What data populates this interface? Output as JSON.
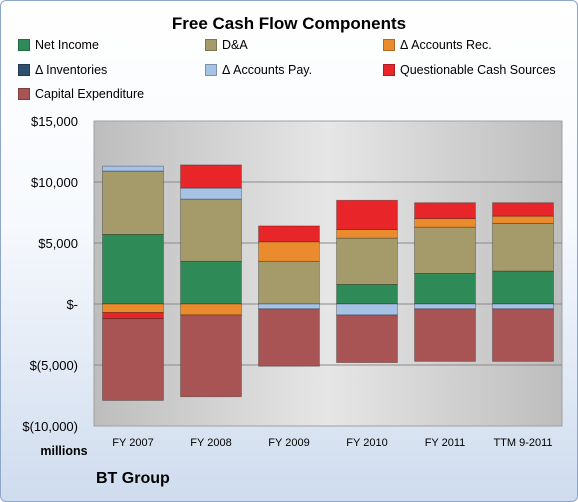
{
  "chart_data": {
    "type": "bar",
    "stacked": true,
    "title": "Free Cash Flow Components",
    "subtitle": "",
    "xlabel": "",
    "ylabel": "",
    "units_label": "millions",
    "source_label": "BT Group",
    "categories": [
      "FY 2007",
      "FY 2008",
      "FY 2009",
      "FY 2010",
      "FY 2011",
      "TTM 9-2011"
    ],
    "ylim": [
      -10000,
      15000
    ],
    "yticks": [
      {
        "value": 15000,
        "label": "$15,000"
      },
      {
        "value": 10000,
        "label": "$10,000"
      },
      {
        "value": 5000,
        "label": "$5,000"
      },
      {
        "value": 0,
        "label": "$-"
      },
      {
        "value": -5000,
        "label": "$(5,000)"
      },
      {
        "value": -10000,
        "label": "$(10,000)"
      }
    ],
    "grid": true,
    "legend_position": "top",
    "series": [
      {
        "name": "Net Income",
        "color": "#2e8b57",
        "values": [
          5700,
          3500,
          0,
          1600,
          2500,
          2700
        ]
      },
      {
        "name": "D&A",
        "color": "#a59b6a",
        "values": [
          5200,
          5100,
          3500,
          3800,
          3800,
          3900
        ]
      },
      {
        "name": "Δ Accounts Rec.",
        "color": "#ea8c2e",
        "values": [
          -700,
          -900,
          1600,
          700,
          700,
          600
        ]
      },
      {
        "name": "Δ Inventories",
        "color": "#2f4f6f",
        "values": [
          0,
          0,
          0,
          0,
          0,
          0
        ]
      },
      {
        "name": "Δ Accounts Pay.",
        "color": "#a6c3e6",
        "values": [
          400,
          900,
          -400,
          -900,
          -400,
          -400
        ]
      },
      {
        "name": "Questionable Cash Sources",
        "color": "#e8262a",
        "values": [
          -500,
          1900,
          1300,
          2400,
          1300,
          1100
        ]
      },
      {
        "name": "Capital Expenditure",
        "color": "#a85454",
        "values": [
          -6700,
          -6700,
          -4700,
          -3900,
          -4300,
          -4300
        ]
      }
    ]
  }
}
